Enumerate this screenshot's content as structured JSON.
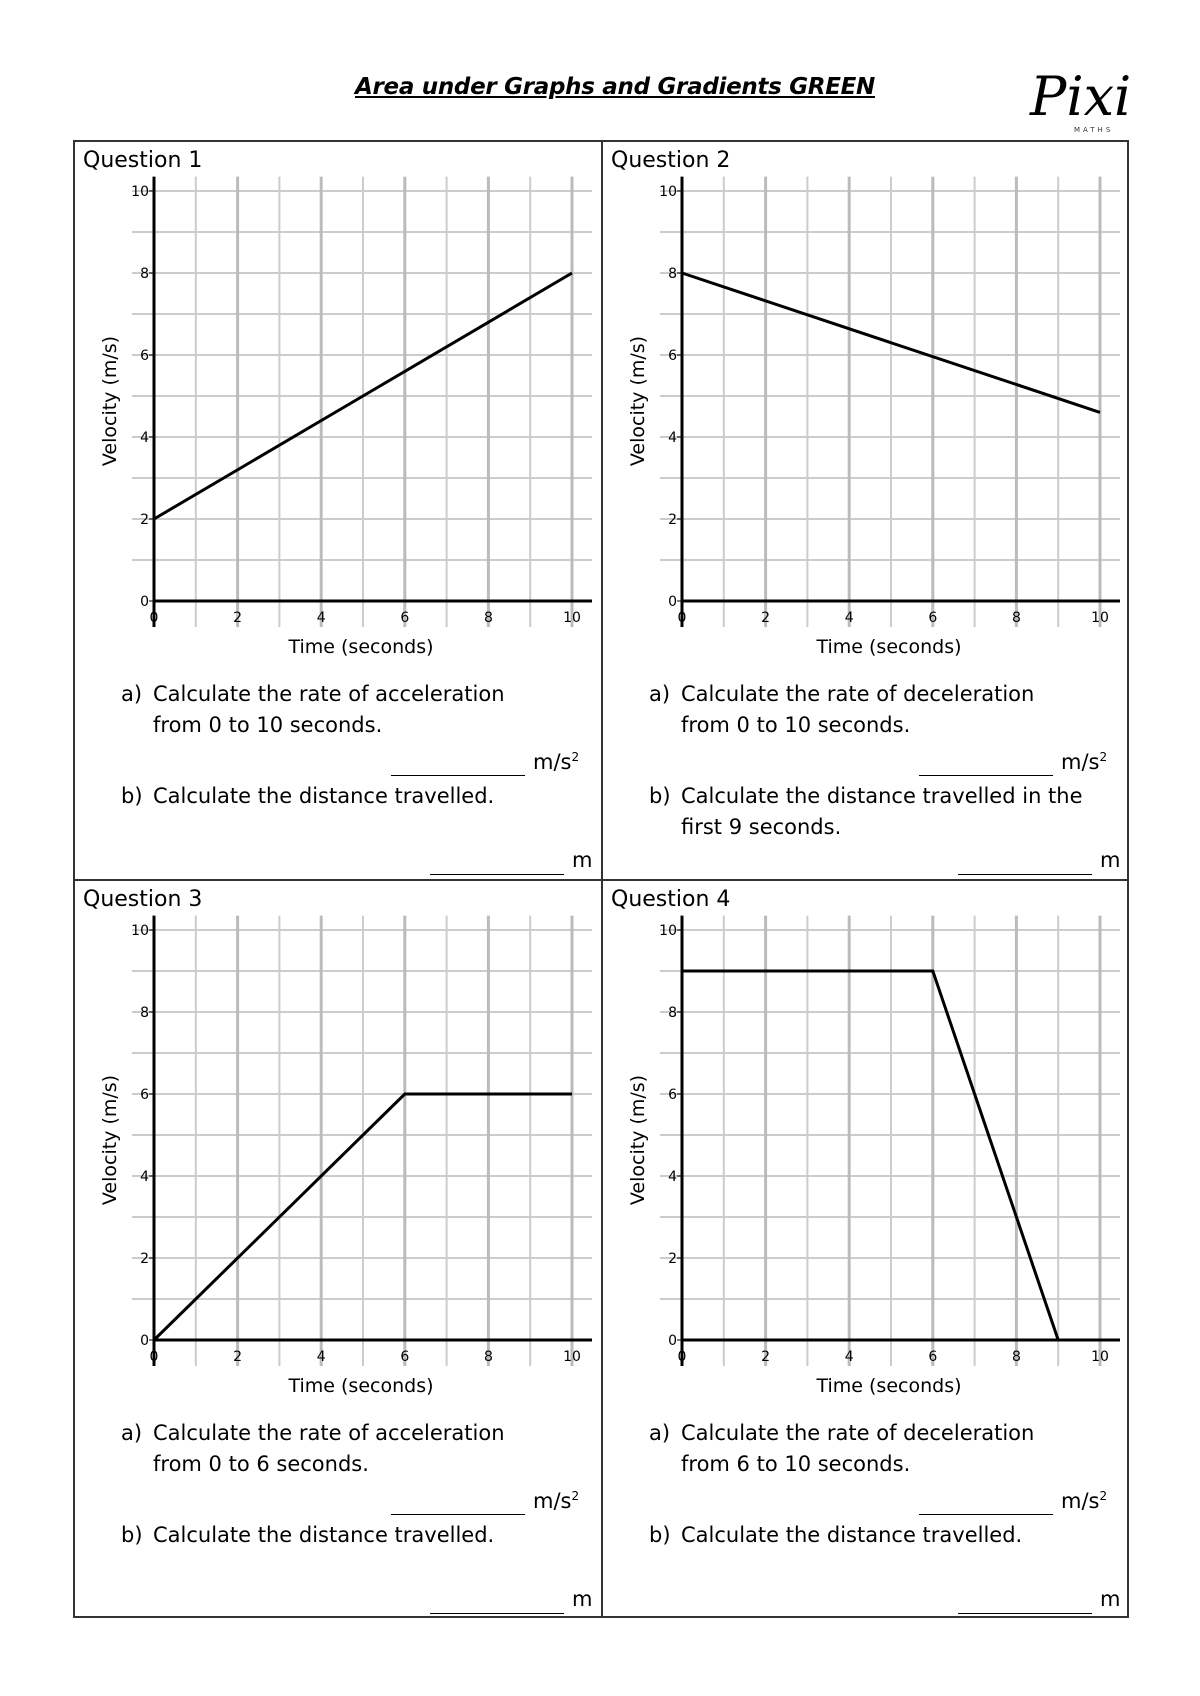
{
  "header": {
    "title": "Area under Graphs and Gradients GREEN",
    "logo_text": "Pixi",
    "logo_subtext": "MATHS"
  },
  "questions": [
    {
      "label": "Question 1",
      "a_marker": "a)",
      "a_lines": [
        "Calculate the rate of acceleration",
        "from 0 to 10 seconds."
      ],
      "a_unit": "m/s",
      "a_unit_sup": "2",
      "b_marker": "b)",
      "b_lines": [
        "Calculate the distance travelled.",
        ""
      ],
      "b_unit": "m"
    },
    {
      "label": "Question 2",
      "a_marker": "a)",
      "a_lines": [
        "Calculate the rate of deceleration",
        "from 0 to 10 seconds."
      ],
      "a_unit": "m/s",
      "a_unit_sup": "2",
      "b_marker": "b)",
      "b_lines": [
        "Calculate the distance travelled in the",
        "first 9 seconds."
      ],
      "b_unit": "m"
    },
    {
      "label": "Question 3",
      "a_marker": "a)",
      "a_lines": [
        "Calculate the rate of acceleration",
        "from 0 to 6 seconds."
      ],
      "a_unit": "m/s",
      "a_unit_sup": "2",
      "b_marker": "b)",
      "b_lines": [
        "Calculate the distance travelled.",
        ""
      ],
      "b_unit": "m"
    },
    {
      "label": "Question 4",
      "a_marker": "a)",
      "a_lines": [
        "Calculate the rate of deceleration",
        "from 6 to 10 seconds."
      ],
      "a_unit": "m/s",
      "a_unit_sup": "2",
      "b_marker": "b)",
      "b_lines": [
        "Calculate the distance travelled.",
        ""
      ],
      "b_unit": "m"
    }
  ],
  "chart_data": [
    {
      "type": "line",
      "xlabel": "Time (seconds)",
      "ylabel": "Velocity (m/s)",
      "xlim": [
        0,
        10
      ],
      "ylim": [
        0,
        10
      ],
      "xticks": [
        "0",
        "2",
        "4",
        "6",
        "8",
        "10"
      ],
      "yticks": [
        "0",
        "2",
        "4",
        "6",
        "8",
        "10"
      ],
      "grid": true,
      "series": [
        {
          "x": [
            0,
            10
          ],
          "y": [
            2,
            8
          ]
        }
      ],
      "line_color": "#000000",
      "grid_color": "#cccccc"
    },
    {
      "type": "line",
      "xlabel": "Time (seconds)",
      "ylabel": "Velocity (m/s)",
      "xlim": [
        0,
        10
      ],
      "ylim": [
        0,
        10
      ],
      "xticks": [
        "0",
        "2",
        "4",
        "6",
        "8",
        "10"
      ],
      "yticks": [
        "0",
        "2",
        "4",
        "6",
        "8",
        "10"
      ],
      "grid": true,
      "series": [
        {
          "x": [
            0,
            10
          ],
          "y": [
            8,
            4.6
          ]
        }
      ],
      "line_color": "#000000",
      "grid_color": "#cccccc"
    },
    {
      "type": "line",
      "xlabel": "Time (seconds)",
      "ylabel": "Velocity (m/s)",
      "xlim": [
        0,
        10
      ],
      "ylim": [
        0,
        10
      ],
      "xticks": [
        "0",
        "2",
        "4",
        "6",
        "8",
        "10"
      ],
      "yticks": [
        "0",
        "2",
        "4",
        "6",
        "8",
        "10"
      ],
      "grid": true,
      "series": [
        {
          "x": [
            0,
            6,
            10
          ],
          "y": [
            0,
            6,
            6
          ]
        }
      ],
      "line_color": "#000000",
      "grid_color": "#cccccc"
    },
    {
      "type": "line",
      "xlabel": "Time (seconds)",
      "ylabel": "Velocity (m/s)",
      "xlim": [
        0,
        10
      ],
      "ylim": [
        0,
        10
      ],
      "xticks": [
        "0",
        "2",
        "4",
        "6",
        "8",
        "10"
      ],
      "yticks": [
        "0",
        "2",
        "4",
        "6",
        "8",
        "10"
      ],
      "grid": true,
      "series": [
        {
          "x": [
            0,
            6,
            9
          ],
          "y": [
            9,
            9,
            0
          ]
        }
      ],
      "line_color": "#000000",
      "grid_color": "#cccccc"
    }
  ]
}
